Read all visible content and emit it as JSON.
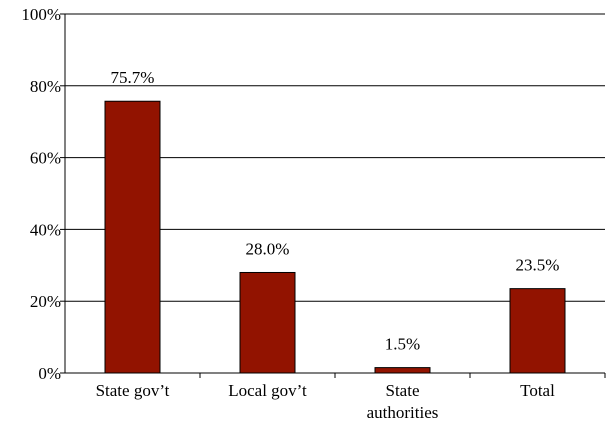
{
  "chart_data": {
    "type": "bar",
    "title": "",
    "xlabel": "",
    "ylabel": "",
    "categories": [
      "State gov't",
      "Local gov't",
      "State authorities",
      "Total"
    ],
    "category_lines": [
      [
        "State gov’t"
      ],
      [
        "Local gov’t"
      ],
      [
        "State",
        "authorities"
      ],
      [
        "Total"
      ]
    ],
    "values": [
      75.7,
      28.0,
      1.5,
      23.5
    ],
    "data_labels": [
      "75.7%",
      "28.0%",
      "1.5%",
      "23.5%"
    ],
    "ylim": [
      0,
      100
    ],
    "y_ticks": [
      0,
      20,
      40,
      60,
      80,
      100
    ],
    "y_tick_labels": [
      "0%",
      "20%",
      "40%",
      "60%",
      "80%",
      "100%"
    ],
    "grid": true,
    "legend": "none",
    "bar_color": "#921300"
  }
}
